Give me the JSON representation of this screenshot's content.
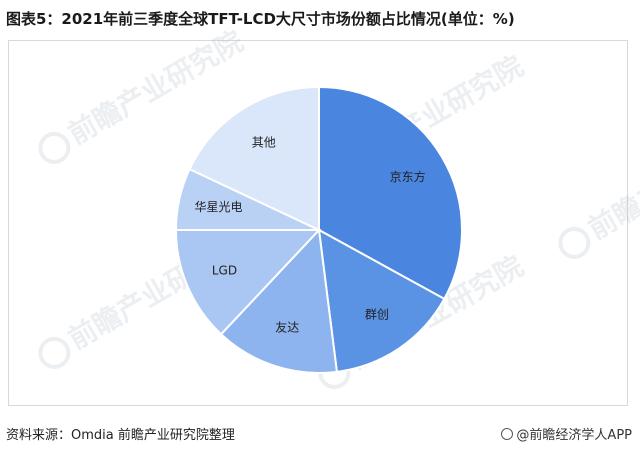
{
  "header": {
    "title": "图表5：2021年前三季度全球TFT-LCD大尺寸市场份额占比情况(单位：%)"
  },
  "footer": {
    "source": "资料来源：Omdia 前瞻产业研究院整理",
    "brand": "@前瞻经济学人APP"
  },
  "watermark": {
    "text": "前瞻产业研究院"
  },
  "colors": {
    "京东方": "#4a86e0",
    "群创": "#5b93e4",
    "友达": "#8db4ef",
    "LGD": "#a9c7f2",
    "华星光电": "#b9d1f4",
    "其他": "#dae6f9",
    "edge": "#ffffff"
  },
  "chart_data": {
    "type": "pie",
    "title": "图表5：2021年前三季度全球TFT-LCD大尺寸市场份额占比情况(单位：%)",
    "categories": [
      "京东方",
      "群创",
      "友达",
      "LGD",
      "华星光电",
      "其他"
    ],
    "values": [
      33,
      15,
      14,
      13,
      7,
      18
    ],
    "start_angle_deg": 0,
    "direction": "clockwise",
    "data_labels": false,
    "legend": "none"
  }
}
